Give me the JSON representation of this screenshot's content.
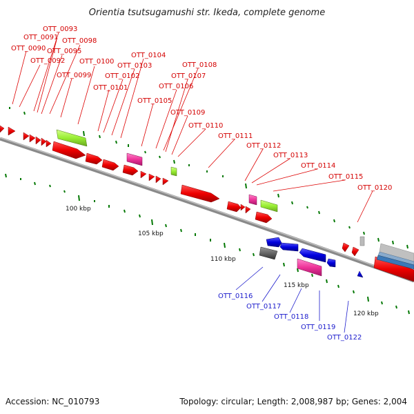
{
  "title": "Orientia tsutsugamushi str. Ikeda, complete genome",
  "footer": {
    "accession": "Accession: NC_010793",
    "stats": "Topology: circular; Length: 2,008,987 bp; Genes: 2,004"
  },
  "axis_labels": [
    "100 kbp",
    "105 kbp",
    "110 kbp",
    "115 kbp",
    "120 kbp"
  ],
  "forward_labels": [
    "OTT_0093",
    "OTT_0091",
    "OTT_0098",
    "OTT_0090",
    "OTT_0095",
    "OTT_0092",
    "OTT_0104",
    "OTT_0100",
    "OTT_0103",
    "OTT_0108",
    "OTT_0099",
    "OTT_0102",
    "OTT_0107",
    "OTT_0101",
    "OTT_0106",
    "OTT_0105",
    "OTT_0109",
    "OTT_0110",
    "OTT_0111",
    "OTT_0112",
    "OTT_0113",
    "OTT_0114",
    "OTT_0115",
    "OTT_0120"
  ],
  "reverse_labels": [
    "OTT_0116",
    "OTT_0117",
    "OTT_0118",
    "OTT_0119",
    "OTT_0122"
  ],
  "colors": {
    "forward_gene": "#ee0000",
    "reverse_gene": "#0000dd",
    "trna": "#99ee33",
    "rrna": "#ee3399",
    "pseudo": "#666666",
    "backbone": "#888888",
    "gc_skew": "#007700"
  }
}
